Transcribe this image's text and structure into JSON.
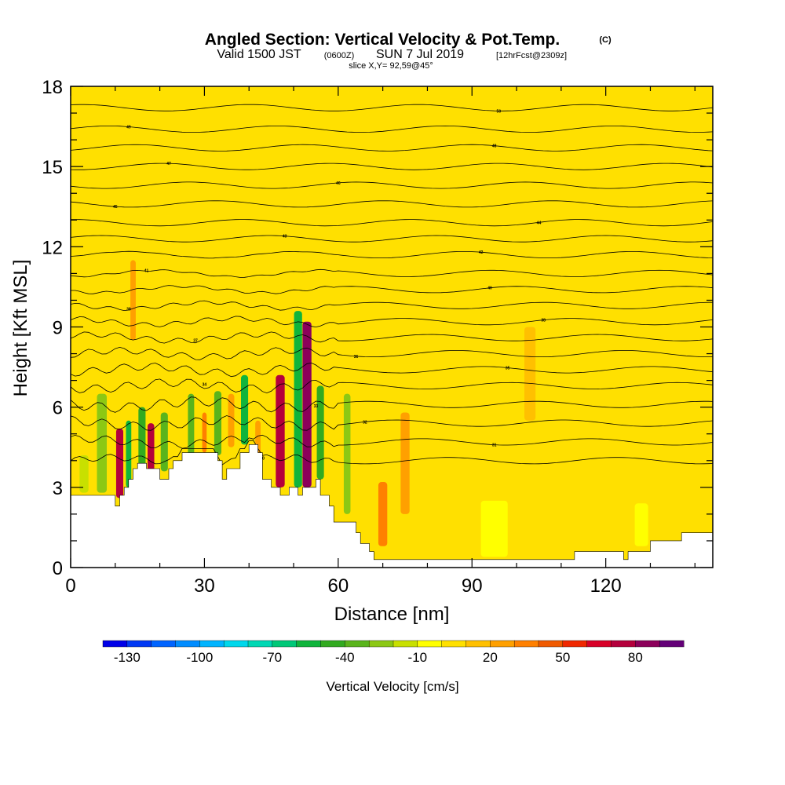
{
  "title": {
    "main": "Angled Section: Vertical Velocity & Pot.Temp.",
    "main_unit": "(C)",
    "valid_prefix": "Valid 1500 JST",
    "valid_utc": "(0600Z)",
    "valid_date": "SUN 7 Jul 2019",
    "forecast": "[12hrFcst@2309z]",
    "slice": "slice X,Y= 92,59@45°"
  },
  "chart_data": {
    "type": "heatmap",
    "xlabel": "Distance [nm]",
    "ylabel": "Height [Kft MSL]",
    "xlim": [
      0,
      144
    ],
    "ylim": [
      0,
      18
    ],
    "xticks": [
      "0",
      "30",
      "60",
      "90",
      "120"
    ],
    "yticks": [
      "0",
      "3",
      "6",
      "9",
      "12",
      "15",
      "18"
    ],
    "background_value_cm_s": 0,
    "terrain_kft": [
      [
        0,
        2.7
      ],
      [
        5,
        2.7
      ],
      [
        10,
        2.7
      ],
      [
        10,
        2.3
      ],
      [
        11,
        2.3
      ],
      [
        11,
        2.7
      ],
      [
        12,
        2.7
      ],
      [
        12,
        3.0
      ],
      [
        13,
        3.0
      ],
      [
        13,
        3.3
      ],
      [
        14,
        3.3
      ],
      [
        14,
        3.7
      ],
      [
        15,
        3.7
      ],
      [
        15,
        3.9
      ],
      [
        17,
        3.9
      ],
      [
        17,
        3.7
      ],
      [
        20,
        3.7
      ],
      [
        20,
        3.3
      ],
      [
        22,
        3.3
      ],
      [
        22,
        3.7
      ],
      [
        23,
        3.7
      ],
      [
        23,
        4.0
      ],
      [
        25,
        4.0
      ],
      [
        25,
        4.3
      ],
      [
        33,
        4.3
      ],
      [
        33,
        4.0
      ],
      [
        34,
        4.0
      ],
      [
        34,
        3.3
      ],
      [
        35,
        3.3
      ],
      [
        35,
        3.7
      ],
      [
        38,
        3.7
      ],
      [
        38,
        4.3
      ],
      [
        40,
        4.3
      ],
      [
        40,
        4.6
      ],
      [
        42,
        4.6
      ],
      [
        42,
        4.3
      ],
      [
        43,
        4.3
      ],
      [
        43,
        3.3
      ],
      [
        45,
        3.3
      ],
      [
        45,
        3.0
      ],
      [
        47,
        3.0
      ],
      [
        47,
        2.7
      ],
      [
        49,
        2.7
      ],
      [
        49,
        3.0
      ],
      [
        51,
        3.0
      ],
      [
        51,
        2.7
      ],
      [
        52,
        2.7
      ],
      [
        52,
        3.0
      ],
      [
        55,
        3.0
      ],
      [
        55,
        3.3
      ],
      [
        56,
        3.3
      ],
      [
        56,
        2.7
      ],
      [
        58,
        2.7
      ],
      [
        58,
        2.3
      ],
      [
        59,
        2.3
      ],
      [
        59,
        1.7
      ],
      [
        64,
        1.7
      ],
      [
        64,
        1.3
      ],
      [
        65,
        1.3
      ],
      [
        65,
        0.9
      ],
      [
        67,
        0.9
      ],
      [
        67,
        0.6
      ],
      [
        68,
        0.6
      ],
      [
        68,
        0.3
      ],
      [
        113,
        0.3
      ],
      [
        113,
        0.6
      ],
      [
        124,
        0.6
      ],
      [
        124,
        0.3
      ],
      [
        125,
        0.3
      ],
      [
        125,
        0.6
      ],
      [
        130,
        0.6
      ],
      [
        130,
        1.0
      ],
      [
        137,
        1.0
      ],
      [
        137,
        1.3
      ],
      [
        144,
        1.3
      ]
    ],
    "vertical_velocity_cells": [
      {
        "x": 11,
        "y0": 2.6,
        "y1": 5.2,
        "w": 1.6,
        "value": 75
      },
      {
        "x": 13,
        "y0": 3.0,
        "y1": 5.5,
        "w": 1.2,
        "value": -60
      },
      {
        "x": 16,
        "y0": 3.6,
        "y1": 6.0,
        "w": 1.6,
        "value": -50
      },
      {
        "x": 18,
        "y0": 3.6,
        "y1": 5.4,
        "w": 1.5,
        "value": 70
      },
      {
        "x": 21,
        "y0": 3.6,
        "y1": 5.8,
        "w": 1.6,
        "value": -40
      },
      {
        "x": 27,
        "y0": 4.2,
        "y1": 6.5,
        "w": 1.4,
        "value": -40
      },
      {
        "x": 30,
        "y0": 4.3,
        "y1": 5.8,
        "w": 1.0,
        "value": 30
      },
      {
        "x": 33,
        "y0": 4.2,
        "y1": 6.6,
        "w": 1.6,
        "value": -40
      },
      {
        "x": 36,
        "y0": 4.5,
        "y1": 6.5,
        "w": 1.4,
        "value": 25
      },
      {
        "x": 39,
        "y0": 4.6,
        "y1": 7.2,
        "w": 1.6,
        "value": -55
      },
      {
        "x": 42,
        "y0": 3.8,
        "y1": 5.5,
        "w": 1.2,
        "value": 20
      },
      {
        "x": 47,
        "y0": 3.0,
        "y1": 7.2,
        "w": 2.0,
        "value": 70
      },
      {
        "x": 51,
        "y0": 3.0,
        "y1": 9.6,
        "w": 1.8,
        "value": -60
      },
      {
        "x": 53,
        "y0": 3.0,
        "y1": 9.2,
        "w": 2.0,
        "value": 80
      },
      {
        "x": 56,
        "y0": 3.3,
        "y1": 6.8,
        "w": 1.6,
        "value": -45
      },
      {
        "x": 62,
        "y0": 2.0,
        "y1": 6.5,
        "w": 1.5,
        "value": -25
      },
      {
        "x": 70,
        "y0": 0.8,
        "y1": 3.2,
        "w": 2.0,
        "value": 30
      },
      {
        "x": 75,
        "y0": 2.0,
        "y1": 5.8,
        "w": 2.0,
        "value": 20
      },
      {
        "x": 7,
        "y0": 2.8,
        "y1": 6.5,
        "w": 2.2,
        "value": -30
      },
      {
        "x": 3,
        "y0": 2.8,
        "y1": 4.2,
        "w": 2.0,
        "value": -15
      },
      {
        "x": 95,
        "y0": 0.4,
        "y1": 2.5,
        "w": 6,
        "value": -10
      },
      {
        "x": 128,
        "y0": 0.8,
        "y1": 2.4,
        "w": 3,
        "value": -10
      },
      {
        "x": 14,
        "y0": 8.5,
        "y1": 11.5,
        "w": 1.2,
        "value": 20
      },
      {
        "x": 103,
        "y0": 5.5,
        "y1": 9,
        "w": 2.5,
        "value": 10
      }
    ],
    "theta_contours": [
      {
        "label": "30",
        "base": 4.0,
        "lab_x": 43
      },
      {
        "label": "31",
        "base": 4.7,
        "lab_x": 95
      },
      {
        "label": "32",
        "base": 5.4,
        "lab_x": 66
      },
      {
        "label": "33",
        "base": 6.1,
        "lab_x": 55
      },
      {
        "label": "34",
        "base": 6.8,
        "lab_x": 30
      },
      {
        "label": "35",
        "base": 7.4,
        "lab_x": 98
      },
      {
        "label": "36",
        "base": 8.0,
        "lab_x": 64
      },
      {
        "label": "37",
        "base": 8.6,
        "lab_x": 28
      },
      {
        "label": "38",
        "base": 9.2,
        "lab_x": 106
      },
      {
        "label": "39",
        "base": 9.8,
        "lab_x": 13
      },
      {
        "label": "40",
        "base": 10.4,
        "lab_x": 94
      },
      {
        "label": "41",
        "base": 11.0,
        "lab_x": 17
      },
      {
        "label": "42",
        "base": 11.7,
        "lab_x": 92
      },
      {
        "label": "43",
        "base": 12.3,
        "lab_x": 48
      },
      {
        "label": "44",
        "base": 12.9,
        "lab_x": 105
      },
      {
        "label": "45",
        "base": 13.6,
        "lab_x": 10
      },
      {
        "label": "46",
        "base": 14.3,
        "lab_x": 60
      },
      {
        "label": "47",
        "base": 15.0,
        "lab_x": 22
      },
      {
        "label": "48",
        "base": 15.7,
        "lab_x": 95
      },
      {
        "label": "49",
        "base": 16.4,
        "lab_x": 13
      },
      {
        "label": "50",
        "base": 17.2,
        "lab_x": 96
      }
    ]
  },
  "colorbar": {
    "label": "Vertical Velocity [cm/s]",
    "tick_labels": [
      "-130",
      "-100",
      "-70",
      "-40",
      "-10",
      "20",
      "50",
      "80"
    ],
    "tick_values": [
      -130,
      -100,
      -70,
      -40,
      -10,
      20,
      50,
      80
    ],
    "min": -140,
    "max": 100,
    "step": 10,
    "colors": [
      "#0000e8",
      "#0038f4",
      "#0064ff",
      "#008cff",
      "#00b4ff",
      "#00d8ec",
      "#00d8b4",
      "#00c878",
      "#10b43c",
      "#32aa20",
      "#5ab41c",
      "#8cc814",
      "#c8e000",
      "#ffff00",
      "#ffe000",
      "#ffc000",
      "#ffa000",
      "#ff8000",
      "#f05a00",
      "#f02800",
      "#d80028",
      "#b4003c",
      "#8c005a",
      "#640078"
    ]
  }
}
